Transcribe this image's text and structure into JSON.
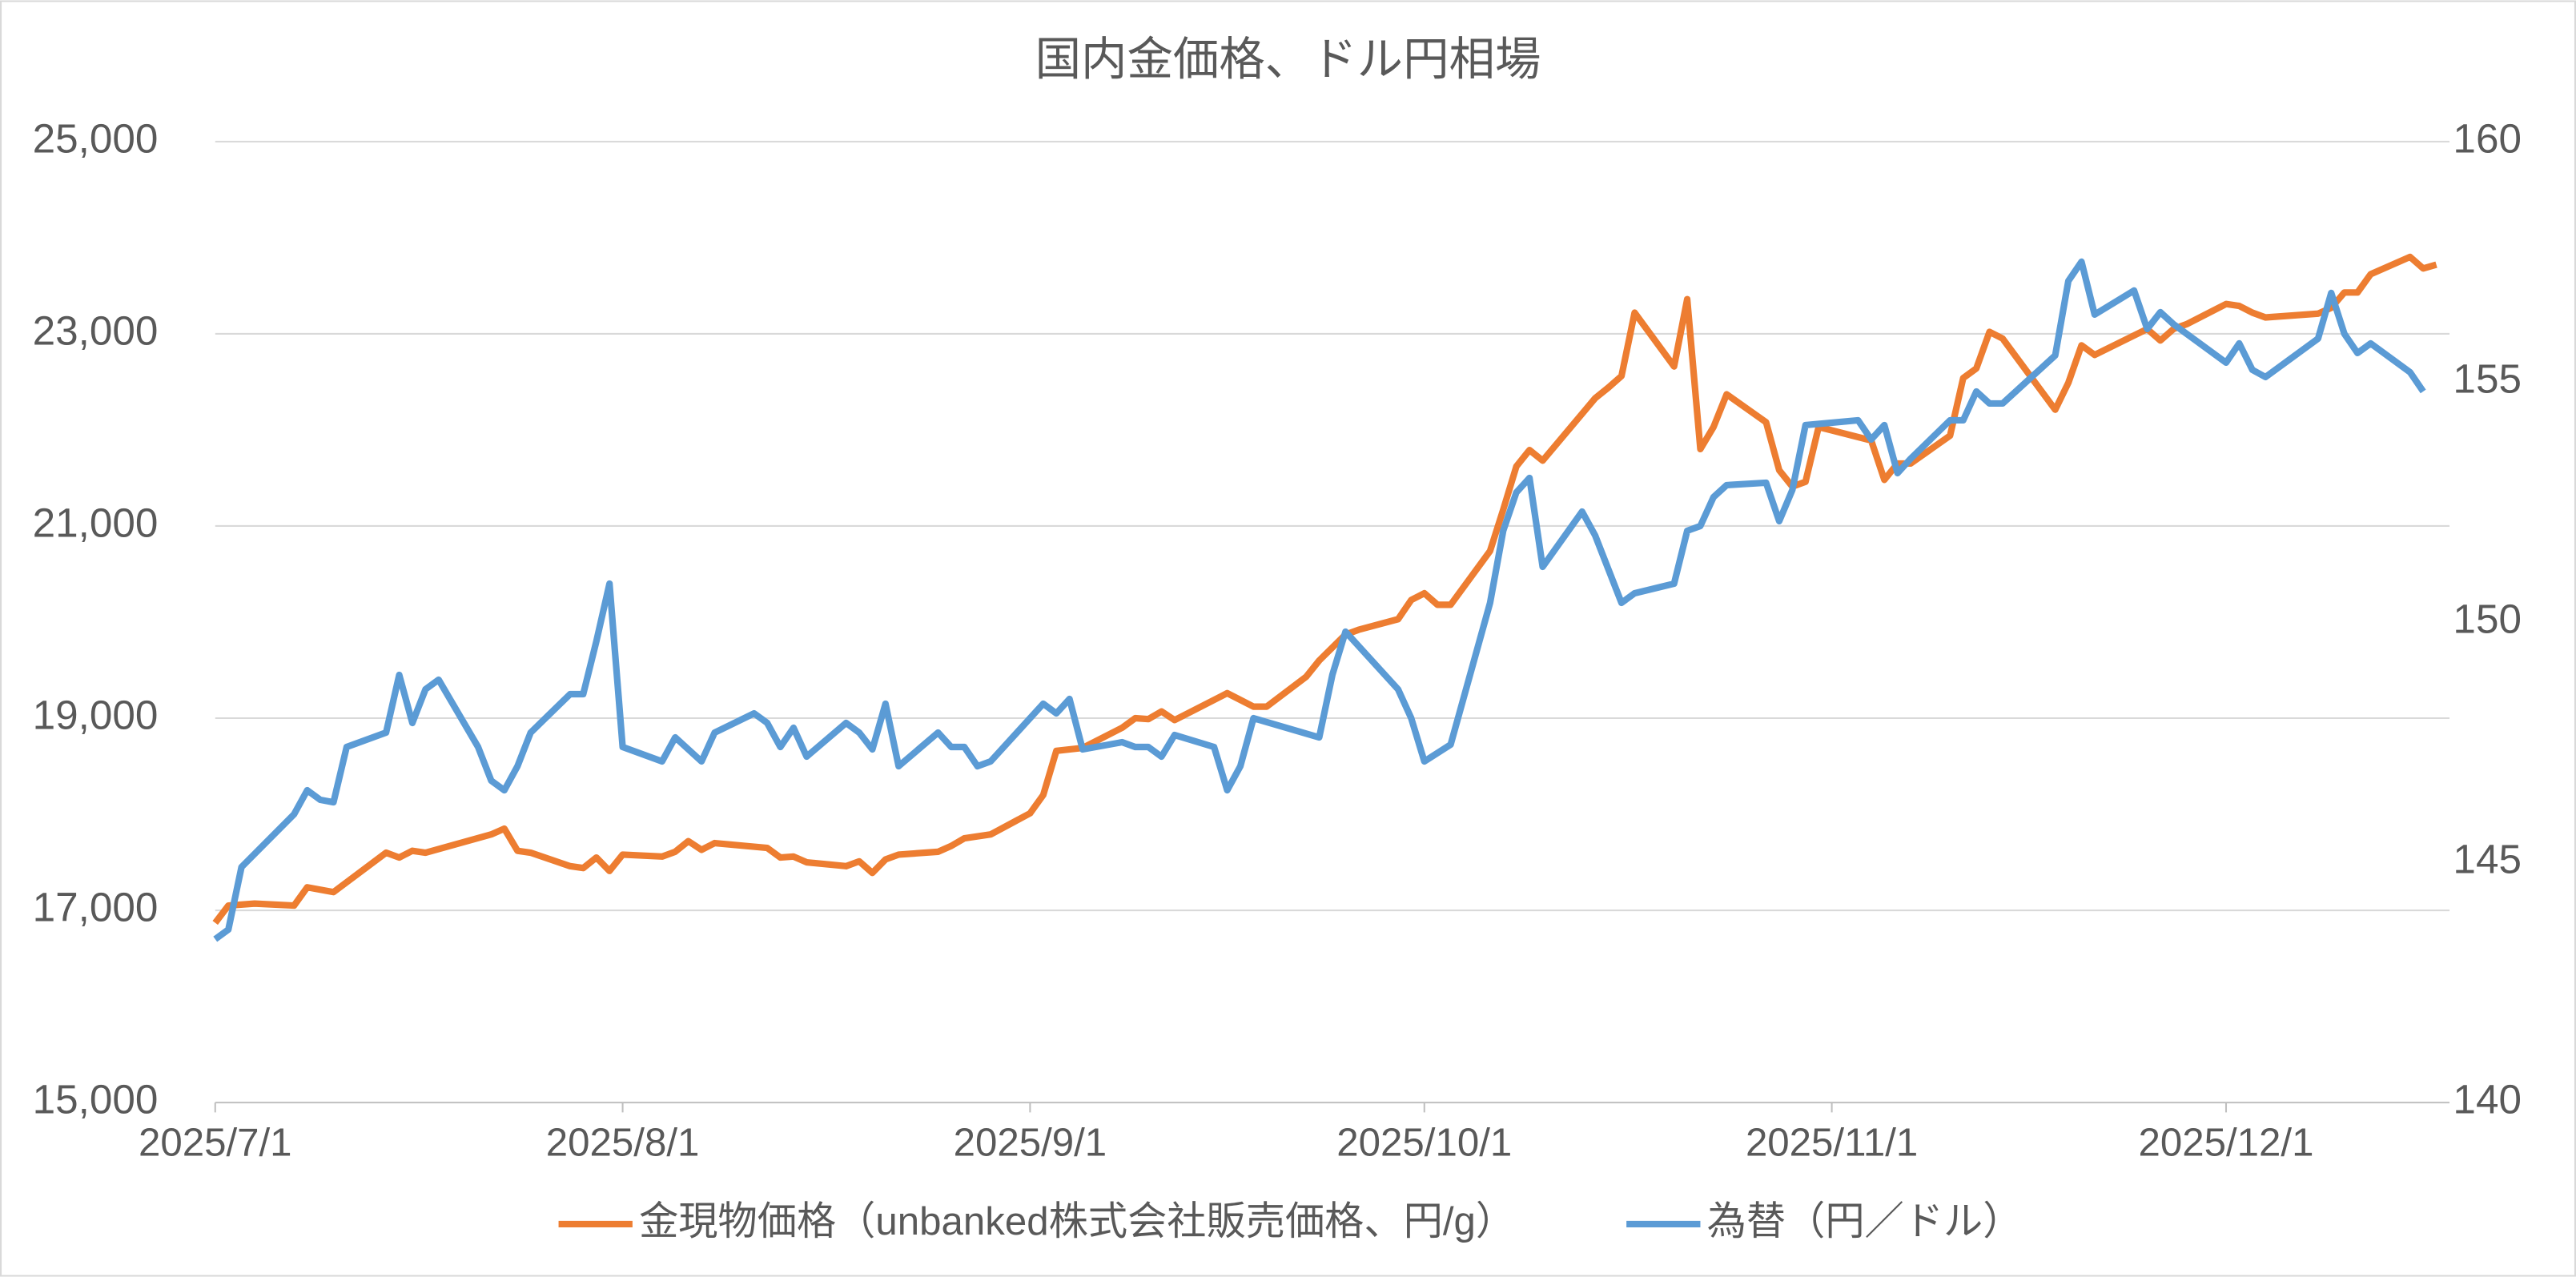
{
  "chart_data": {
    "type": "line",
    "title": "国内金価格、ドル円相場",
    "xlim": [
      "2025/7/1",
      "2025/12/18"
    ],
    "xticks": [
      "2025/7/1",
      "2025/8/1",
      "2025/9/1",
      "2025/10/1",
      "2025/11/1",
      "2025/12/1"
    ],
    "ylim": [
      15000,
      25000
    ],
    "yticks": [
      {
        "value": 15000,
        "label": "15,000"
      },
      {
        "value": 17000,
        "label": "17,000"
      },
      {
        "value": 19000,
        "label": "19,000"
      },
      {
        "value": 21000,
        "label": "21,000"
      },
      {
        "value": 23000,
        "label": "23,000"
      },
      {
        "value": 25000,
        "label": "25,000"
      }
    ],
    "y2lim": [
      140,
      160
    ],
    "y2ticks": [
      140,
      145,
      150,
      155,
      160
    ],
    "grid": true,
    "legend": "bottom",
    "series": [
      {
        "name": "金現物価格（unbanked株式会社販売価格、円/g）",
        "color": "#ed7d31",
        "axis": "y",
        "x": [
          "2025/7/1",
          "2025/7/2",
          "2025/7/4",
          "2025/7/7",
          "2025/7/8",
          "2025/7/10",
          "2025/7/14",
          "2025/7/15",
          "2025/7/16",
          "2025/7/17",
          "2025/7/22",
          "2025/7/23",
          "2025/7/24",
          "2025/7/25",
          "2025/7/28",
          "2025/7/29",
          "2025/7/30",
          "2025/7/31",
          "2025/8/1",
          "2025/8/4",
          "2025/8/5",
          "2025/8/6",
          "2025/8/7",
          "2025/8/8",
          "2025/8/12",
          "2025/8/13",
          "2025/8/14",
          "2025/8/15",
          "2025/8/18",
          "2025/8/19",
          "2025/8/20",
          "2025/8/21",
          "2025/8/22",
          "2025/8/25",
          "2025/8/26",
          "2025/8/27",
          "2025/8/29",
          "2025/9/1",
          "2025/9/2",
          "2025/9/3",
          "2025/9/5",
          "2025/9/8",
          "2025/9/9",
          "2025/9/10",
          "2025/9/11",
          "2025/9/12",
          "2025/9/16",
          "2025/9/17",
          "2025/9/18",
          "2025/9/19",
          "2025/9/22",
          "2025/9/23",
          "2025/9/25",
          "2025/9/26",
          "2025/9/29",
          "2025/9/30",
          "2025/10/1",
          "2025/10/2",
          "2025/10/3",
          "2025/10/6",
          "2025/10/7",
          "2025/10/8",
          "2025/10/9",
          "2025/10/10",
          "2025/10/14",
          "2025/10/15",
          "2025/10/16",
          "2025/10/17",
          "2025/10/20",
          "2025/10/21",
          "2025/10/22",
          "2025/10/23",
          "2025/10/24",
          "2025/10/27",
          "2025/10/28",
          "2025/10/29",
          "2025/10/30",
          "2025/10/31",
          "2025/11/4",
          "2025/11/5",
          "2025/11/6",
          "2025/11/7",
          "2025/11/10",
          "2025/11/11",
          "2025/11/12",
          "2025/11/13",
          "2025/11/14",
          "2025/11/18",
          "2025/11/19",
          "2025/11/20",
          "2025/11/21",
          "2025/11/25",
          "2025/11/26",
          "2025/11/27",
          "2025/11/28",
          "2025/12/1",
          "2025/12/2",
          "2025/12/3",
          "2025/12/4",
          "2025/12/8",
          "2025/12/9",
          "2025/12/10",
          "2025/12/11",
          "2025/12/12",
          "2025/12/15",
          "2025/12/16",
          "2025/12/17"
        ],
        "values": [
          16870,
          17050,
          17070,
          17050,
          17240,
          17190,
          17600,
          17550,
          17620,
          17600,
          17790,
          17850,
          17620,
          17600,
          17460,
          17440,
          17550,
          17410,
          17580,
          17560,
          17610,
          17720,
          17630,
          17700,
          17650,
          17550,
          17560,
          17500,
          17460,
          17510,
          17390,
          17530,
          17580,
          17610,
          17670,
          17750,
          17790,
          18010,
          18200,
          18660,
          18690,
          18900,
          19000,
          18990,
          19070,
          18980,
          19260,
          19190,
          19120,
          19120,
          19430,
          19600,
          19870,
          19920,
          20030,
          20230,
          20300,
          20180,
          20180,
          20740,
          21170,
          21620,
          21790,
          21680,
          22330,
          22440,
          22560,
          23220,
          22660,
          23360,
          21800,
          22030,
          22370,
          22080,
          21580,
          21410,
          21460,
          22030,
          21890,
          21480,
          21650,
          21650,
          21940,
          22540,
          22640,
          23020,
          22950,
          22210,
          22490,
          22880,
          22780,
          23050,
          22930,
          23050,
          23100,
          23310,
          23290,
          23220,
          23170,
          23210,
          23270,
          23430,
          23430,
          23620,
          23800,
          23680,
          23720
        ]
      },
      {
        "name": "為替（円／ドル）",
        "color": "#5b9bd5",
        "axis": "y2",
        "x": [
          "2025/7/1",
          "2025/7/2",
          "2025/7/3",
          "2025/7/7",
          "2025/7/8",
          "2025/7/9",
          "2025/7/10",
          "2025/7/11",
          "2025/7/14",
          "2025/7/15",
          "2025/7/16",
          "2025/7/17",
          "2025/7/18",
          "2025/7/21",
          "2025/7/22",
          "2025/7/23",
          "2025/7/24",
          "2025/7/25",
          "2025/7/28",
          "2025/7/29",
          "2025/7/30",
          "2025/7/31",
          "2025/8/1",
          "2025/8/4",
          "2025/8/5",
          "2025/8/6",
          "2025/8/7",
          "2025/8/8",
          "2025/8/11",
          "2025/8/12",
          "2025/8/13",
          "2025/8/14",
          "2025/8/15",
          "2025/8/18",
          "2025/8/19",
          "2025/8/20",
          "2025/8/21",
          "2025/8/22",
          "2025/8/25",
          "2025/8/26",
          "2025/8/27",
          "2025/8/28",
          "2025/8/29",
          "2025/9/2",
          "2025/9/3",
          "2025/9/4",
          "2025/9/5",
          "2025/9/8",
          "2025/9/9",
          "2025/9/10",
          "2025/9/11",
          "2025/9/12",
          "2025/9/15",
          "2025/9/16",
          "2025/9/17",
          "2025/9/18",
          "2025/9/23",
          "2025/9/24",
          "2025/9/25",
          "2025/9/29",
          "2025/9/30",
          "2025/10/1",
          "2025/10/3",
          "2025/10/6",
          "2025/10/7",
          "2025/10/8",
          "2025/10/9",
          "2025/10/10",
          "2025/10/13",
          "2025/10/14",
          "2025/10/15",
          "2025/10/16",
          "2025/10/17",
          "2025/10/20",
          "2025/10/21",
          "2025/10/22",
          "2025/10/23",
          "2025/10/24",
          "2025/10/27",
          "2025/10/28",
          "2025/10/29",
          "2025/10/30",
          "2025/11/3",
          "2025/11/4",
          "2025/11/5",
          "2025/11/6",
          "2025/11/7",
          "2025/11/10",
          "2025/11/11",
          "2025/11/12",
          "2025/11/13",
          "2025/11/14",
          "2025/11/18",
          "2025/11/19",
          "2025/11/20",
          "2025/11/21",
          "2025/11/24",
          "2025/11/25",
          "2025/11/26",
          "2025/11/27",
          "2025/12/1",
          "2025/12/2",
          "2025/12/3",
          "2025/12/4",
          "2025/12/8",
          "2025/12/9",
          "2025/12/10",
          "2025/12/11",
          "2025/12/12",
          "2025/12/15",
          "2025/12/16"
        ],
        "values": [
          143.4,
          143.6,
          144.9,
          146.0,
          146.5,
          146.3,
          146.25,
          147.4,
          147.7,
          148.9,
          147.9,
          148.6,
          148.8,
          147.4,
          146.7,
          146.5,
          147.0,
          147.7,
          148.5,
          148.5,
          149.6,
          150.8,
          147.4,
          147.1,
          147.6,
          147.35,
          147.1,
          147.7,
          148.1,
          147.9,
          147.4,
          147.8,
          147.2,
          147.9,
          147.7,
          147.35,
          148.3,
          147.0,
          147.7,
          147.4,
          147.4,
          147.0,
          147.1,
          148.3,
          148.1,
          148.4,
          147.35,
          147.5,
          147.4,
          147.4,
          147.2,
          147.65,
          147.4,
          146.5,
          147.0,
          148.0,
          147.6,
          148.9,
          149.8,
          148.6,
          148.0,
          147.1,
          147.45,
          150.4,
          151.9,
          152.7,
          153.0,
          151.15,
          152.3,
          151.8,
          151.1,
          150.4,
          150.6,
          150.8,
          151.9,
          152.0,
          152.6,
          152.85,
          152.9,
          152.1,
          152.75,
          154.1,
          154.2,
          153.8,
          154.1,
          153.1,
          153.4,
          154.2,
          154.2,
          154.8,
          154.55,
          154.55,
          155.55,
          157.1,
          157.5,
          156.4,
          156.9,
          156.1,
          156.45,
          156.2,
          155.4,
          155.8,
          155.25,
          155.1,
          155.9,
          156.85,
          156.0,
          155.6,
          155.8,
          155.2,
          154.8
        ]
      }
    ]
  }
}
